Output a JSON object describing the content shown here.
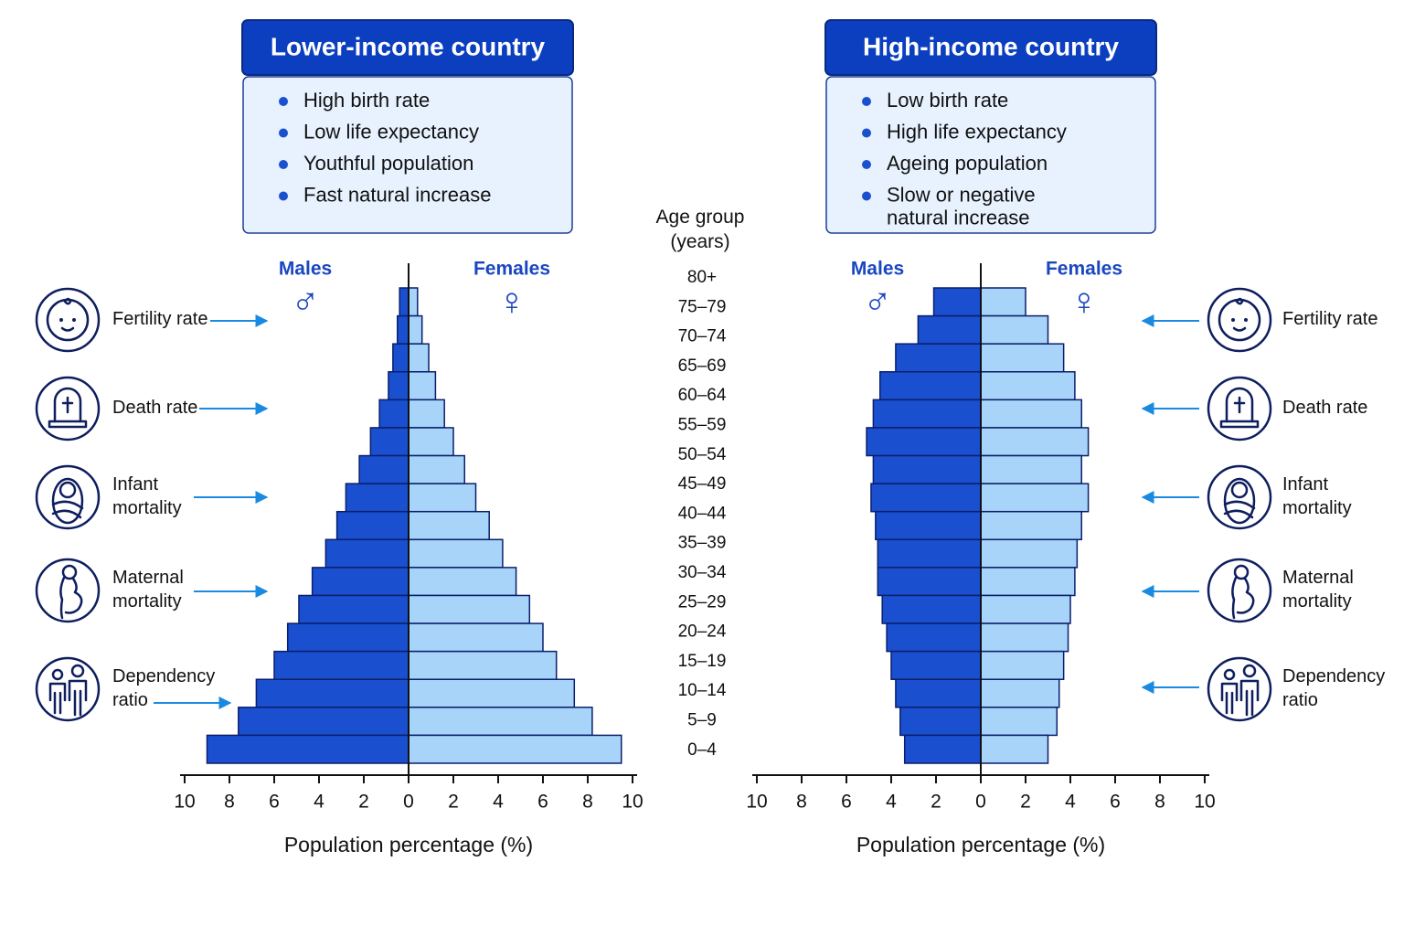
{
  "age_groups": {
    "title": [
      "Age group",
      "(years)"
    ],
    "categories": [
      "80+",
      "75–79",
      "70–74",
      "65–69",
      "60–64",
      "55–59",
      "50–54",
      "45–49",
      "40–44",
      "35–39",
      "30–34",
      "25–29",
      "20–24",
      "15–19",
      "10–14",
      "5–9",
      "0–4"
    ]
  },
  "indicators": [
    [
      "Fertility rate"
    ],
    [
      "Death rate"
    ],
    [
      "Infant",
      "mortality"
    ],
    [
      "Maternal",
      "mortality"
    ],
    [
      "Dependency",
      "ratio"
    ]
  ],
  "chart_data": [
    {
      "type": "pyramid",
      "title": "Lower-income country",
      "bullets": [
        "High birth rate",
        "Low life expectancy",
        "Youthful population",
        "Fast natural increase"
      ],
      "xlabel": "Population percentage (%)",
      "xlim": [
        0,
        10
      ],
      "xticks": [
        0,
        2,
        4,
        6,
        8,
        10
      ],
      "series": [
        {
          "name": "Males",
          "symbol": "♂",
          "color": "#1a4fd0",
          "values": [
            0.4,
            0.5,
            0.7,
            0.9,
            1.3,
            1.7,
            2.2,
            2.8,
            3.2,
            3.7,
            4.3,
            4.9,
            5.4,
            6.0,
            6.8,
            7.6,
            9.0
          ]
        },
        {
          "name": "Females",
          "symbol": "♀",
          "color": "#a8d4fa",
          "values": [
            0.4,
            0.6,
            0.9,
            1.2,
            1.6,
            2.0,
            2.5,
            3.0,
            3.6,
            4.2,
            4.8,
            5.4,
            6.0,
            6.6,
            7.4,
            8.2,
            9.5
          ]
        }
      ]
    },
    {
      "type": "pyramid",
      "title": "High-income country",
      "bullets": [
        "Low birth rate",
        "High life expectancy",
        "Ageing population",
        [
          "Slow or negative",
          "natural increase"
        ]
      ],
      "xlabel": "Population percentage (%)",
      "xlim": [
        0,
        10
      ],
      "xticks": [
        0,
        2,
        4,
        6,
        8,
        10
      ],
      "series": [
        {
          "name": "Males",
          "symbol": "♂",
          "color": "#1a4fd0",
          "values": [
            2.1,
            2.8,
            3.8,
            4.5,
            4.8,
            5.1,
            4.8,
            4.9,
            4.7,
            4.6,
            4.6,
            4.4,
            4.2,
            4.0,
            3.8,
            3.6,
            3.4
          ]
        },
        {
          "name": "Females",
          "symbol": "♀",
          "color": "#a8d4fa",
          "values": [
            2.0,
            3.0,
            3.7,
            4.2,
            4.5,
            4.8,
            4.5,
            4.8,
            4.5,
            4.3,
            4.2,
            4.0,
            3.9,
            3.7,
            3.5,
            3.4,
            3.0
          ]
        }
      ]
    }
  ]
}
